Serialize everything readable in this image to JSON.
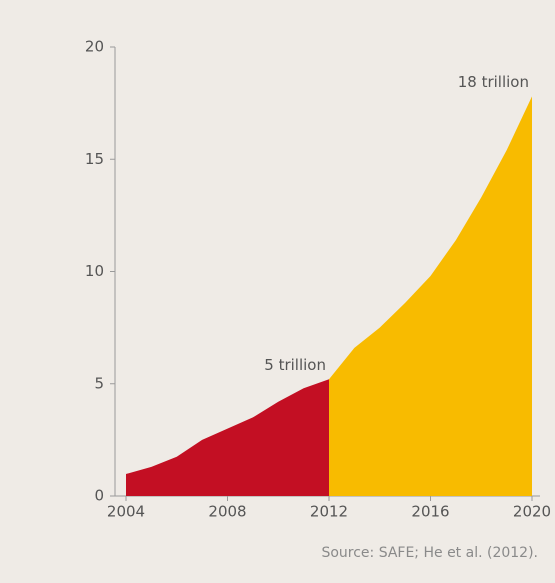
{
  "chart_data": {
    "type": "area",
    "series": [
      {
        "color": "#c30f23",
        "x": [
          2004,
          2005,
          2006,
          2007,
          2008,
          2009,
          2010,
          2011,
          2012
        ],
        "values": [
          0.98,
          1.3,
          1.75,
          2.5,
          3.0,
          3.5,
          4.2,
          4.8,
          5.2
        ],
        "value_labels": [
          null,
          null,
          null,
          null,
          null,
          null,
          null,
          null,
          "5 trillion"
        ]
      },
      {
        "color": "#f8bb00",
        "x": [
          2012,
          2013,
          2014,
          2015,
          2016,
          2017,
          2018,
          2019,
          2020
        ],
        "values": [
          5.2,
          6.6,
          7.5,
          8.6,
          9.8,
          11.4,
          13.3,
          15.4,
          17.8
        ],
        "value_labels": [
          null,
          null,
          null,
          null,
          null,
          null,
          null,
          null,
          "18 trillion"
        ]
      }
    ],
    "xlim": [
      2004,
      2020
    ],
    "xticks": [
      2004,
      2008,
      2012,
      2016,
      2020
    ],
    "ylim": [
      0,
      20
    ],
    "yticks": [
      0,
      5,
      10,
      15,
      20
    ],
    "source": "Source: SAFE; He et al. (2012)."
  }
}
